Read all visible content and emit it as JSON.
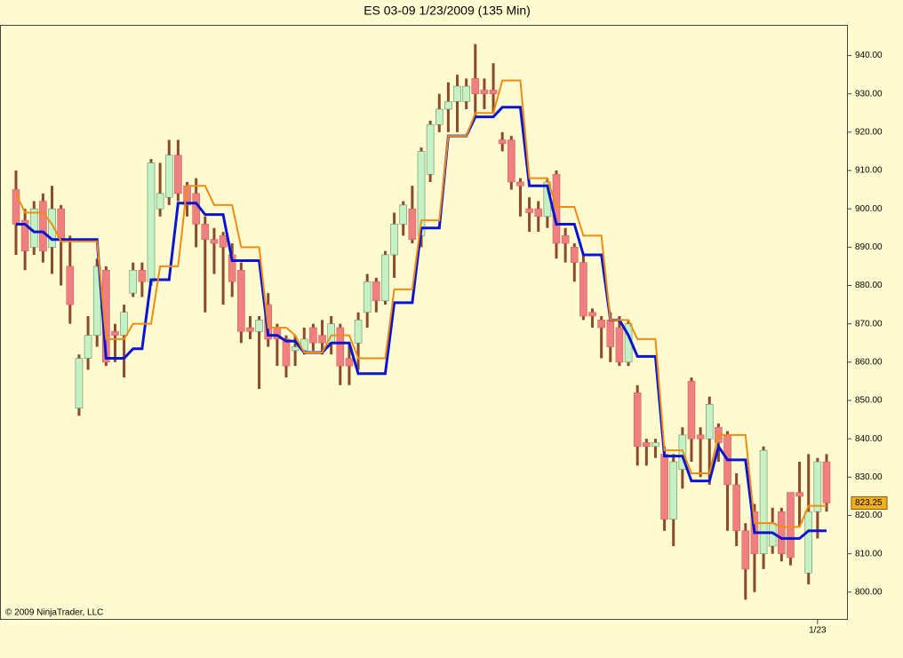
{
  "chart_data": {
    "type": "candlestick",
    "title": "ES 03-09  1/23/2009 (135 Min)",
    "copyright": "© 2009 NinjaTrader, LLC",
    "up_color": "#c4f2c4",
    "down_color": "#f08080",
    "wick_color": "#8b4a2b",
    "open": [
      905,
      897,
      890,
      902,
      890,
      900,
      885,
      848,
      861,
      867,
      884,
      868,
      867,
      878,
      884,
      881,
      900,
      903,
      914,
      906,
      904,
      896,
      892,
      893,
      888,
      884,
      869,
      868,
      875,
      869,
      866,
      863,
      863,
      869,
      867,
      865,
      869,
      861,
      865,
      873,
      881,
      876,
      888,
      896,
      900,
      893,
      909,
      922,
      926,
      928,
      928,
      934,
      931,
      931,
      918,
      918,
      907,
      900,
      900,
      898,
      909,
      893,
      890,
      886,
      873,
      871,
      871,
      869,
      860,
      852,
      839,
      838,
      836,
      819,
      832,
      855,
      841,
      840,
      843,
      841,
      828,
      816,
      821,
      810,
      812,
      821,
      826,
      826,
      805,
      821,
      834
    ],
    "high": [
      910,
      900,
      902,
      904,
      906,
      901,
      893,
      862,
      872,
      887,
      885,
      870,
      875,
      886,
      886,
      913,
      912,
      918,
      918,
      907,
      908,
      898,
      895,
      894,
      891,
      886,
      872,
      872,
      878,
      870,
      867,
      867,
      869,
      870,
      871,
      872,
      870,
      865,
      873,
      883,
      882,
      889,
      899,
      902,
      906,
      916,
      923,
      930,
      933,
      935,
      934,
      943,
      934,
      938,
      920,
      919,
      908,
      903,
      902,
      908,
      910,
      895,
      891,
      888,
      874,
      872,
      873,
      872,
      871,
      854,
      840,
      840,
      838,
      836,
      843,
      856,
      843,
      851,
      844,
      842,
      831,
      818,
      823,
      838,
      822,
      822,
      826,
      834,
      836,
      835,
      836
    ],
    "low": [
      888,
      884,
      888,
      886,
      883,
      880,
      870,
      846,
      858,
      864,
      859,
      860,
      856,
      877,
      877,
      880,
      898,
      901,
      902,
      898,
      890,
      873,
      883,
      875,
      877,
      865,
      866,
      853,
      864,
      859,
      856,
      859,
      862,
      863,
      862,
      862,
      854,
      854,
      858,
      869,
      873,
      875,
      882,
      893,
      891,
      890,
      907,
      920,
      920,
      920,
      926,
      924,
      926,
      925,
      915,
      905,
      898,
      894,
      894,
      895,
      887,
      886,
      881,
      871,
      869,
      861,
      860,
      859,
      859,
      833,
      833,
      835,
      816,
      812,
      827,
      834,
      830,
      828,
      834,
      816,
      812,
      798,
      800,
      806,
      810,
      808,
      807,
      817,
      802,
      814,
      821
    ],
    "close": [
      896,
      889,
      900,
      889,
      900,
      892,
      875,
      861,
      867,
      885,
      860,
      867,
      873,
      884,
      881,
      912,
      904,
      914,
      904,
      901,
      896,
      892,
      891,
      890,
      881,
      868,
      868,
      871,
      866,
      866,
      859,
      864,
      866,
      865,
      865,
      870,
      859,
      859,
      871,
      881,
      876,
      888,
      896,
      901,
      892,
      915,
      922,
      926,
      928,
      932,
      932,
      930,
      930,
      930,
      917,
      907,
      906,
      899,
      898,
      907,
      891,
      891,
      886,
      872,
      872,
      869,
      864,
      860,
      870,
      838,
      838,
      839,
      819,
      834,
      841,
      840,
      840,
      849,
      839,
      828,
      816,
      806,
      810,
      837,
      818,
      810,
      809,
      825,
      821,
      834,
      823.25
    ],
    "lines": [
      {
        "color": "#0a14d2",
        "values": [
          896,
          896,
          894,
          894,
          892,
          892,
          892,
          892,
          892,
          892,
          861,
          861,
          861,
          863.5,
          863.5,
          881.5,
          881.5,
          881.5,
          901.5,
          901.5,
          901.5,
          898.5,
          898.5,
          898.5,
          886.5,
          886.5,
          886.5,
          886.5,
          867,
          867,
          865.5,
          865.5,
          862.5,
          862.5,
          862.5,
          865,
          865,
          865,
          857,
          857,
          857,
          857,
          875.5,
          875.5,
          875.5,
          895,
          895,
          895,
          919,
          919,
          919,
          924,
          924,
          924,
          926.5,
          926.5,
          926.5,
          906,
          906,
          906,
          896,
          896,
          896,
          888,
          888,
          888,
          871,
          871,
          867,
          861.5,
          861.5,
          861.5,
          835.5,
          835.5,
          835.5,
          829,
          829,
          829,
          838,
          834.5,
          834.5,
          834.5,
          815.5,
          815.5,
          815.5,
          814,
          814,
          814,
          816,
          816,
          816
        ]
      },
      {
        "color": "#f28c10",
        "values": [
          904,
          899,
          899,
          899,
          896,
          891.5,
          891.5,
          891.5,
          891.5,
          891.5,
          866,
          866,
          866,
          870,
          870,
          870,
          885,
          885,
          885,
          906,
          906,
          906,
          901,
          901,
          901,
          890,
          890,
          890,
          869,
          869,
          869,
          867,
          862.5,
          862.5,
          862.5,
          867,
          867,
          867,
          861,
          861,
          861,
          861,
          879,
          879,
          879,
          897,
          897,
          897,
          919,
          919,
          919,
          925,
          925,
          925,
          933.5,
          933.5,
          933.5,
          908,
          908,
          908,
          900.5,
          900.5,
          900.5,
          893,
          893,
          893,
          871,
          871,
          871,
          866,
          866,
          866,
          837,
          837,
          837,
          831,
          831,
          831,
          841,
          841,
          841,
          841,
          818,
          818,
          818,
          817,
          817,
          817,
          822.5,
          822.5,
          822.5
        ]
      }
    ],
    "ylim": [
      793,
      948
    ],
    "yticks": [
      {
        "value": 800,
        "label": "800.00"
      },
      {
        "value": 810,
        "label": "810.00"
      },
      {
        "value": 820,
        "label": "820.00"
      },
      {
        "value": 830,
        "label": "830.00"
      },
      {
        "value": 840,
        "label": "840.00"
      },
      {
        "value": 850,
        "label": "850.00"
      },
      {
        "value": 860,
        "label": "860.00"
      },
      {
        "value": 870,
        "label": "870.00"
      },
      {
        "value": 880,
        "label": "880.00"
      },
      {
        "value": 890,
        "label": "890.00"
      },
      {
        "value": 900,
        "label": "900.00"
      },
      {
        "value": 910,
        "label": "910.00"
      },
      {
        "value": 920,
        "label": "920.00"
      },
      {
        "value": 930,
        "label": "930.00"
      },
      {
        "value": 940,
        "label": "940.00"
      }
    ],
    "date_marker": {
      "index": 89,
      "label": "1/23"
    },
    "last_label": {
      "value": 823.25,
      "label": "823.25"
    }
  }
}
